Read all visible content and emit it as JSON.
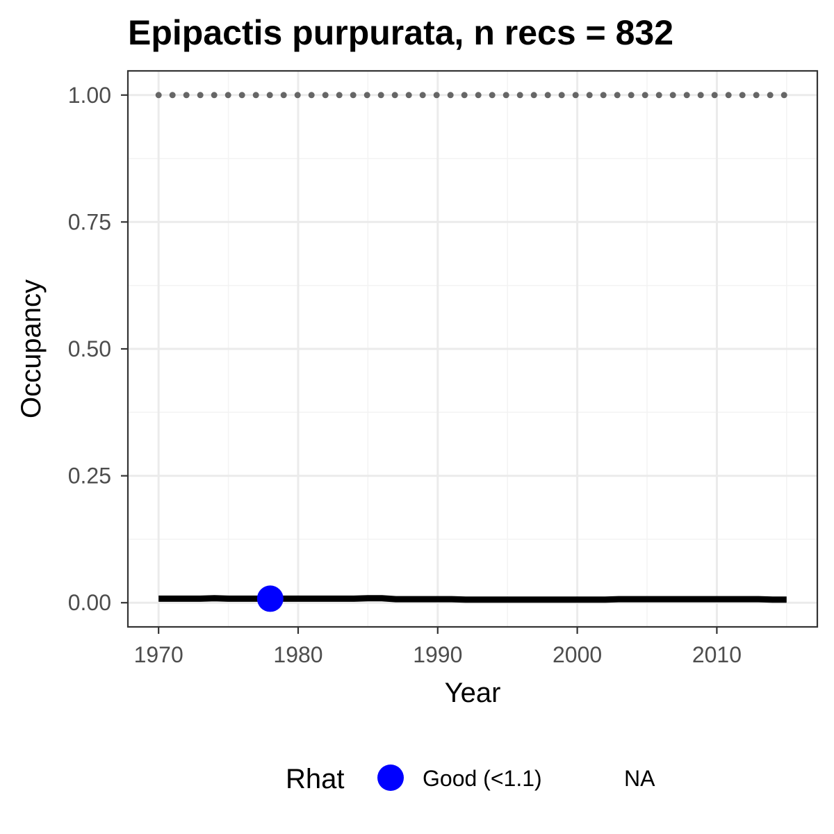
{
  "chart_data": {
    "type": "line",
    "title": "Epipactis purpurata, n recs = 832",
    "xlabel": "Year",
    "ylabel": "Occupancy",
    "xlim": [
      1967.8,
      2017.2
    ],
    "ylim": [
      -0.0476,
      1.0476
    ],
    "x_ticks": [
      1970,
      1980,
      1990,
      2000,
      2010
    ],
    "x_tick_labels": [
      "1970",
      "1980",
      "1990",
      "2000",
      "2010"
    ],
    "y_ticks": [
      0,
      0.25,
      0.5,
      0.75,
      1
    ],
    "y_tick_labels": [
      "0.00",
      "0.25",
      "0.50",
      "0.75",
      "1.00"
    ],
    "grid": true,
    "series": [
      {
        "line_style": "solid",
        "color": "#000000",
        "x": [
          1970,
          1971,
          1972,
          1973,
          1974,
          1975,
          1976,
          1977,
          1978,
          1979,
          1980,
          1981,
          1982,
          1983,
          1984,
          1985,
          1986,
          1987,
          1988,
          1989,
          1990,
          1991,
          1992,
          1993,
          1994,
          1995,
          1996,
          1997,
          1998,
          1999,
          2000,
          2001,
          2002,
          2003,
          2004,
          2005,
          2006,
          2007,
          2008,
          2009,
          2010,
          2011,
          2012,
          2013,
          2014,
          2015
        ],
        "values": [
          0.008,
          0.008,
          0.008,
          0.008,
          0.009,
          0.008,
          0.008,
          0.008,
          0.008,
          0.008,
          0.008,
          0.008,
          0.008,
          0.008,
          0.008,
          0.009,
          0.009,
          0.007,
          0.007,
          0.007,
          0.007,
          0.007,
          0.006,
          0.006,
          0.006,
          0.006,
          0.006,
          0.006,
          0.006,
          0.006,
          0.006,
          0.006,
          0.006,
          0.007,
          0.007,
          0.007,
          0.007,
          0.007,
          0.007,
          0.007,
          0.007,
          0.007,
          0.007,
          0.007,
          0.006,
          0.006
        ]
      },
      {
        "line_style": "dotted",
        "color": "#666666",
        "x": [
          1970,
          1971,
          1972,
          1973,
          1974,
          1975,
          1976,
          1977,
          1978,
          1979,
          1980,
          1981,
          1982,
          1983,
          1984,
          1985,
          1986,
          1987,
          1988,
          1989,
          1990,
          1991,
          1992,
          1993,
          1994,
          1995,
          1996,
          1997,
          1998,
          1999,
          2000,
          2001,
          2002,
          2003,
          2004,
          2005,
          2006,
          2007,
          2008,
          2009,
          2010,
          2011,
          2012,
          2013,
          2014,
          2015
        ],
        "values": [
          1,
          1,
          1,
          1,
          1,
          1,
          1,
          1,
          1,
          1,
          1,
          1,
          1,
          1,
          1,
          1,
          1,
          1,
          1,
          1,
          1,
          1,
          1,
          1,
          1,
          1,
          1,
          1,
          1,
          1,
          1,
          1,
          1,
          1,
          1,
          1,
          1,
          1,
          1,
          1,
          1,
          1,
          1,
          1,
          1,
          1
        ]
      }
    ],
    "points": [
      {
        "x": 1978,
        "y": 0.008,
        "category": "Good (<1.1)",
        "color": "#0000ff"
      }
    ],
    "legend": {
      "title": "Rhat",
      "position": "bottom",
      "entries": [
        {
          "label": "Good (<1.1)",
          "color": "#0000ff",
          "symbol": "circle"
        },
        {
          "label": "NA",
          "color": null,
          "symbol": "none"
        }
      ]
    }
  }
}
